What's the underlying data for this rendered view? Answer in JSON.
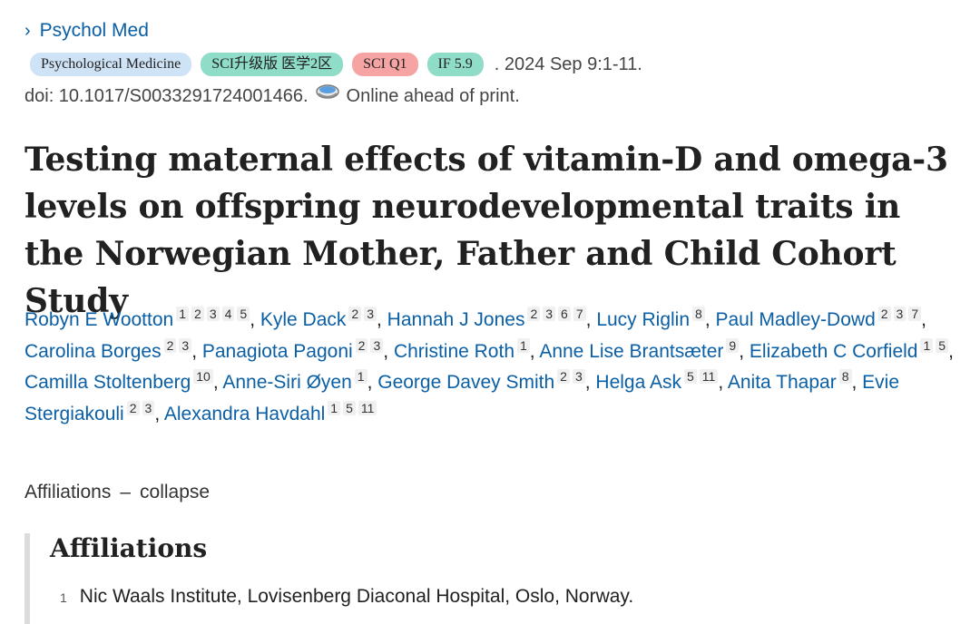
{
  "journal": {
    "link_label": "Psychol Med",
    "chevron": "›"
  },
  "badges": {
    "journal_name": "Psychological Medicine",
    "sci": "SCI升级版 医学2区",
    "quartile": "SCI Q1",
    "impact_factor": "IF 5.9"
  },
  "citation": {
    "date": ". 2024 Sep 9:1-11.",
    "doi": "doi: 10.1017/S0033291724001466.",
    "status": "Online ahead of print."
  },
  "article": {
    "title": "Testing maternal effects of vitamin-D and omega-3 levels on offspring neurodevelopmental traits in the Norwegian Mother, Father and Child Cohort Study"
  },
  "authors": [
    {
      "name": "Robyn E Wootton",
      "affs": [
        "1",
        "2",
        "3",
        "4",
        "5"
      ]
    },
    {
      "name": "Kyle Dack",
      "affs": [
        "2",
        "3"
      ]
    },
    {
      "name": "Hannah J Jones",
      "affs": [
        "2",
        "3",
        "6",
        "7"
      ]
    },
    {
      "name": "Lucy Riglin",
      "affs": [
        "8"
      ]
    },
    {
      "name": "Paul Madley-Dowd",
      "affs": [
        "2",
        "3",
        "7"
      ]
    },
    {
      "name": "Carolina Borges",
      "affs": [
        "2",
        "3"
      ]
    },
    {
      "name": "Panagiota Pagoni",
      "affs": [
        "2",
        "3"
      ]
    },
    {
      "name": "Christine Roth",
      "affs": [
        "1"
      ]
    },
    {
      "name": "Anne Lise Brantsæter",
      "affs": [
        "9"
      ]
    },
    {
      "name": "Elizabeth C Corfield",
      "affs": [
        "1",
        "5"
      ]
    },
    {
      "name": "Camilla Stoltenberg",
      "affs": [
        "10"
      ]
    },
    {
      "name": "Anne-Siri Øyen",
      "affs": [
        "1"
      ]
    },
    {
      "name": "George Davey Smith",
      "affs": [
        "2",
        "3"
      ]
    },
    {
      "name": "Helga Ask",
      "affs": [
        "5",
        "11"
      ]
    },
    {
      "name": "Anita Thapar",
      "affs": [
        "8"
      ]
    },
    {
      "name": "Evie Stergiakouli",
      "affs": [
        "2",
        "3"
      ]
    },
    {
      "name": "Alexandra Havdahl",
      "affs": [
        "1",
        "5",
        "11"
      ]
    }
  ],
  "affiliations_toggle": {
    "label": "Affiliations",
    "dash": "–",
    "action": "collapse"
  },
  "affiliations": {
    "heading": "Affiliations",
    "items": [
      {
        "num": "1",
        "text": "Nic Waals Institute, Lovisenberg Diaconal Hospital, Oslo, Norway."
      }
    ]
  },
  "colors": {
    "link": "#0b5fa5",
    "badge_blue": "#cfe3f7",
    "badge_green": "#8fdcc8",
    "badge_red": "#f6a3a3"
  },
  "icons": {
    "chevron": "chevron-right-icon",
    "print_status": "online-print-icon"
  }
}
